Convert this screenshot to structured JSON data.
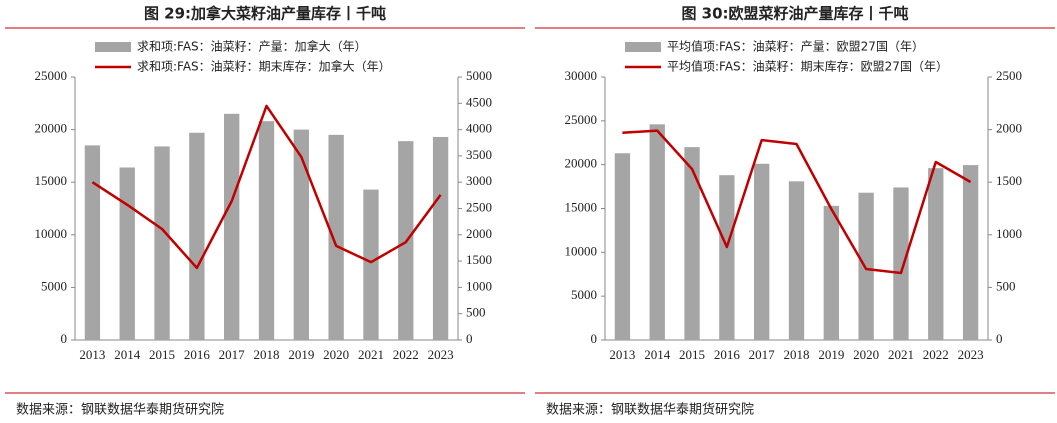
{
  "chart_data": [
    {
      "type": "combo",
      "title": "图 29:加拿大菜籽油产量库存丨千吨",
      "source": "数据来源：钢联数据华泰期货研究院",
      "categories": [
        "2013",
        "2014",
        "2015",
        "2016",
        "2017",
        "2018",
        "2019",
        "2020",
        "2021",
        "2022",
        "2023"
      ],
      "series": [
        {
          "name": "求和项:FAS：油菜籽：产量：加拿大（年）",
          "type": "bar",
          "color": "#a5a5a5",
          "values": [
            18500,
            16400,
            18400,
            19700,
            21500,
            20800,
            20000,
            19500,
            14300,
            18900,
            19300
          ]
        },
        {
          "name": "求和项:FAS：油菜籽：期末库存：加拿大（年）",
          "type": "line",
          "axis": "y2",
          "color": "#c00000",
          "values": [
            3000,
            2570,
            2110,
            1370,
            2640,
            4450,
            3480,
            1790,
            1480,
            1860,
            2760
          ]
        }
      ],
      "ylim": [
        0,
        25000
      ],
      "yticks": [
        0,
        5000,
        10000,
        15000,
        20000,
        25000
      ],
      "y2lim": [
        0,
        5000
      ],
      "y2ticks": [
        0,
        500,
        1000,
        1500,
        2000,
        2500,
        3000,
        3500,
        4000,
        4500,
        5000
      ]
    },
    {
      "type": "combo",
      "title": "图 30:欧盟菜籽油产量库存丨千吨",
      "source": "数据来源：钢联数据华泰期货研究院",
      "categories": [
        "2013",
        "2014",
        "2015",
        "2016",
        "2017",
        "2018",
        "2019",
        "2020",
        "2021",
        "2022",
        "2023"
      ],
      "series": [
        {
          "name": "平均值项:FAS：油菜籽：产量：欧盟27国（年）",
          "type": "bar",
          "color": "#a5a5a5",
          "values": [
            21300,
            24600,
            22000,
            18800,
            20100,
            18100,
            15300,
            16800,
            17400,
            19600,
            19950
          ]
        },
        {
          "name": "平均值项:FAS：油菜籽：期末库存：欧盟27国（年）",
          "type": "line",
          "axis": "y2",
          "color": "#c00000",
          "values": [
            1970,
            1990,
            1625,
            884,
            1900,
            1863,
            1245,
            675,
            637,
            1692,
            1502
          ]
        }
      ],
      "ylim": [
        0,
        30000
      ],
      "yticks": [
        0,
        5000,
        10000,
        15000,
        20000,
        25000,
        30000
      ],
      "y2lim": [
        0,
        2500
      ],
      "y2ticks": [
        0,
        500,
        1000,
        1500,
        2000,
        2500
      ]
    }
  ]
}
